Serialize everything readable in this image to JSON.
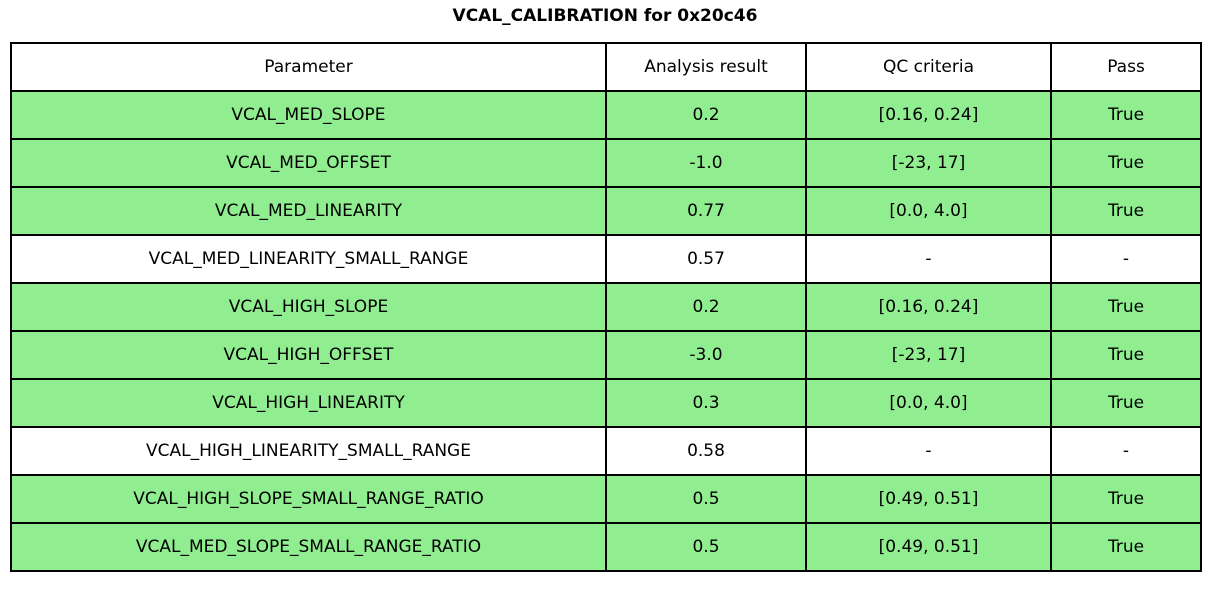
{
  "title": "VCAL_CALIBRATION for 0x20c46",
  "colors": {
    "pass_green": "#90EE90",
    "neutral_white": "#FFFFFF",
    "border_black": "#000000"
  },
  "chart_data": {
    "type": "table",
    "title": "VCAL_CALIBRATION for 0x20c46",
    "columns": [
      "Parameter",
      "Analysis result",
      "QC criteria",
      "Pass"
    ],
    "rows": [
      {
        "cells": [
          "VCAL_MED_SLOPE",
          "0.2",
          "[0.16, 0.24]",
          "True"
        ],
        "highlight": true
      },
      {
        "cells": [
          "VCAL_MED_OFFSET",
          "-1.0",
          "[-23, 17]",
          "True"
        ],
        "highlight": true
      },
      {
        "cells": [
          "VCAL_MED_LINEARITY",
          "0.77",
          "[0.0, 4.0]",
          "True"
        ],
        "highlight": true
      },
      {
        "cells": [
          "VCAL_MED_LINEARITY_SMALL_RANGE",
          "0.57",
          "-",
          "-"
        ],
        "highlight": false
      },
      {
        "cells": [
          "VCAL_HIGH_SLOPE",
          "0.2",
          "[0.16, 0.24]",
          "True"
        ],
        "highlight": true
      },
      {
        "cells": [
          "VCAL_HIGH_OFFSET",
          "-3.0",
          "[-23, 17]",
          "True"
        ],
        "highlight": true
      },
      {
        "cells": [
          "VCAL_HIGH_LINEARITY",
          "0.3",
          "[0.0, 4.0]",
          "True"
        ],
        "highlight": true
      },
      {
        "cells": [
          "VCAL_HIGH_LINEARITY_SMALL_RANGE",
          "0.58",
          "-",
          "-"
        ],
        "highlight": false
      },
      {
        "cells": [
          "VCAL_HIGH_SLOPE_SMALL_RANGE_RATIO",
          "0.5",
          "[0.49, 0.51]",
          "True"
        ],
        "highlight": true
      },
      {
        "cells": [
          "VCAL_MED_SLOPE_SMALL_RANGE_RATIO",
          "0.5",
          "[0.49, 0.51]",
          "True"
        ],
        "highlight": true
      }
    ]
  }
}
